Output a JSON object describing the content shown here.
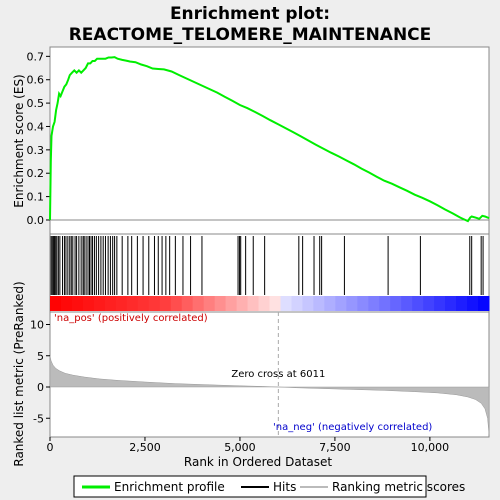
{
  "chart_data": {
    "type": "line",
    "title_line1": "Enrichment plot:",
    "title_line2": "REACTOME_TELOMERE_MAINTENANCE",
    "es_panel": {
      "ylabel": "Enrichment score (ES)",
      "ylim": [
        -0.06,
        0.74
      ],
      "yticks": [
        0.0,
        0.1,
        0.2,
        0.3,
        0.4,
        0.5,
        0.6,
        0.7
      ],
      "ytick_labels": [
        "0.0",
        "0.1",
        "0.2",
        "0.3",
        "0.4",
        "0.5",
        "0.6",
        "0.7"
      ],
      "series_name": "Enrichment profile",
      "color": "#00ee00",
      "points": [
        [
          0,
          0.0
        ],
        [
          20,
          0.25
        ],
        [
          40,
          0.36
        ],
        [
          80,
          0.4
        ],
        [
          120,
          0.42
        ],
        [
          160,
          0.47
        ],
        [
          200,
          0.5
        ],
        [
          240,
          0.54
        ],
        [
          280,
          0.53
        ],
        [
          330,
          0.55
        ],
        [
          380,
          0.57
        ],
        [
          430,
          0.58
        ],
        [
          480,
          0.6
        ],
        [
          520,
          0.62
        ],
        [
          580,
          0.63
        ],
        [
          640,
          0.64
        ],
        [
          700,
          0.63
        ],
        [
          760,
          0.64
        ],
        [
          820,
          0.63
        ],
        [
          880,
          0.64
        ],
        [
          940,
          0.65
        ],
        [
          1000,
          0.67
        ],
        [
          1060,
          0.67
        ],
        [
          1120,
          0.68
        ],
        [
          1180,
          0.68
        ],
        [
          1240,
          0.69
        ],
        [
          1300,
          0.69
        ],
        [
          1380,
          0.69
        ],
        [
          1460,
          0.69
        ],
        [
          1540,
          0.695
        ],
        [
          1620,
          0.695
        ],
        [
          1700,
          0.697
        ],
        [
          1780,
          0.69
        ],
        [
          1900,
          0.685
        ],
        [
          2000,
          0.682
        ],
        [
          2100,
          0.678
        ],
        [
          2250,
          0.675
        ],
        [
          2400,
          0.665
        ],
        [
          2550,
          0.658
        ],
        [
          2700,
          0.648
        ],
        [
          2850,
          0.646
        ],
        [
          3000,
          0.644
        ],
        [
          3200,
          0.635
        ],
        [
          3400,
          0.62
        ],
        [
          3600,
          0.605
        ],
        [
          3800,
          0.59
        ],
        [
          4000,
          0.575
        ],
        [
          4200,
          0.56
        ],
        [
          4400,
          0.545
        ],
        [
          4600,
          0.527
        ],
        [
          4800,
          0.51
        ],
        [
          5000,
          0.492
        ],
        [
          5200,
          0.478
        ],
        [
          5400,
          0.462
        ],
        [
          5600,
          0.445
        ],
        [
          5800,
          0.427
        ],
        [
          6000,
          0.41
        ],
        [
          6200,
          0.393
        ],
        [
          6400,
          0.376
        ],
        [
          6600,
          0.358
        ],
        [
          6800,
          0.34
        ],
        [
          7000,
          0.322
        ],
        [
          7200,
          0.305
        ],
        [
          7400,
          0.288
        ],
        [
          7600,
          0.272
        ],
        [
          7800,
          0.255
        ],
        [
          8000,
          0.238
        ],
        [
          8200,
          0.22
        ],
        [
          8400,
          0.203
        ],
        [
          8600,
          0.185
        ],
        [
          8800,
          0.168
        ],
        [
          9000,
          0.155
        ],
        [
          9200,
          0.14
        ],
        [
          9400,
          0.125
        ],
        [
          9600,
          0.108
        ],
        [
          9800,
          0.095
        ],
        [
          10000,
          0.08
        ],
        [
          10200,
          0.063
        ],
        [
          10400,
          0.045
        ],
        [
          10600,
          0.028
        ],
        [
          10800,
          0.01
        ],
        [
          11000,
          -0.005
        ],
        [
          11060,
          0.01
        ],
        [
          11100,
          0.015
        ],
        [
          11200,
          0.01
        ],
        [
          11300,
          0.005
        ],
        [
          11380,
          0.018
        ],
        [
          11450,
          0.015
        ],
        [
          11520,
          0.01
        ],
        [
          11560,
          0.008
        ]
      ]
    },
    "hits_panel": {
      "hit_positions": [
        30,
        60,
        90,
        120,
        150,
        180,
        220,
        260,
        330,
        380,
        420,
        470,
        520,
        560,
        600,
        660,
        700,
        760,
        820,
        870,
        900,
        950,
        1000,
        1040,
        1080,
        1120,
        1170,
        1220,
        1280,
        1340,
        1400,
        1460,
        1530,
        1590,
        1650,
        1700,
        1760,
        1900,
        2050,
        2150,
        2300,
        2450,
        2600,
        2750,
        2850,
        2950,
        3050,
        3150,
        3300,
        3500,
        3700,
        4000,
        4950,
        4990,
        5020,
        5150,
        5350,
        5650,
        6550,
        6650,
        6950,
        7100,
        7150,
        7750,
        8900,
        9750,
        11050,
        11100,
        11350,
        11400
      ]
    },
    "metric_panel": {
      "ylabel": "Ranked list metric (PreRanked)",
      "ylim": [
        -8.0,
        12.0
      ],
      "yticks": [
        10,
        5,
        0,
        -5
      ],
      "ytick_labels": [
        "10",
        "5",
        "0",
        "-5"
      ],
      "zero_cross_text": "Zero cross at 6011",
      "zero_cross_rank": 6011,
      "pos_label": "'na_pos' (positively correlated)",
      "neg_label": "'na_neg' (negatively correlated)",
      "metric_points": [
        [
          0,
          5.0
        ],
        [
          30,
          4.2
        ],
        [
          80,
          3.5
        ],
        [
          150,
          3.0
        ],
        [
          250,
          2.6
        ],
        [
          400,
          2.2
        ],
        [
          600,
          1.9
        ],
        [
          900,
          1.6
        ],
        [
          1300,
          1.3
        ],
        [
          1800,
          1.05
        ],
        [
          2500,
          0.8
        ],
        [
          3300,
          0.55
        ],
        [
          4200,
          0.35
        ],
        [
          5000,
          0.2
        ],
        [
          5600,
          0.1
        ],
        [
          6011,
          0.0
        ],
        [
          6500,
          -0.12
        ],
        [
          7200,
          -0.25
        ],
        [
          8000,
          -0.4
        ],
        [
          8800,
          -0.55
        ],
        [
          9600,
          -0.75
        ],
        [
          10200,
          -0.95
        ],
        [
          10700,
          -1.25
        ],
        [
          11000,
          -1.6
        ],
        [
          11200,
          -2.0
        ],
        [
          11350,
          -2.6
        ],
        [
          11450,
          -3.5
        ],
        [
          11520,
          -5.0
        ],
        [
          11556,
          -7.6
        ]
      ],
      "xlabel": "Rank in Ordered Dataset",
      "xlim": [
        0,
        11556
      ],
      "xticks": [
        0,
        2500,
        5000,
        7500,
        10000
      ],
      "xtick_labels": [
        "0",
        "2,500",
        "5,000",
        "7,500",
        "10,000"
      ]
    },
    "legend": {
      "items": [
        {
          "label": "Enrichment profile",
          "color": "#00ee00"
        },
        {
          "label": "Hits",
          "color": "#000000"
        },
        {
          "label": "Ranking metric scores",
          "color": "#bbbbbb"
        }
      ]
    }
  }
}
